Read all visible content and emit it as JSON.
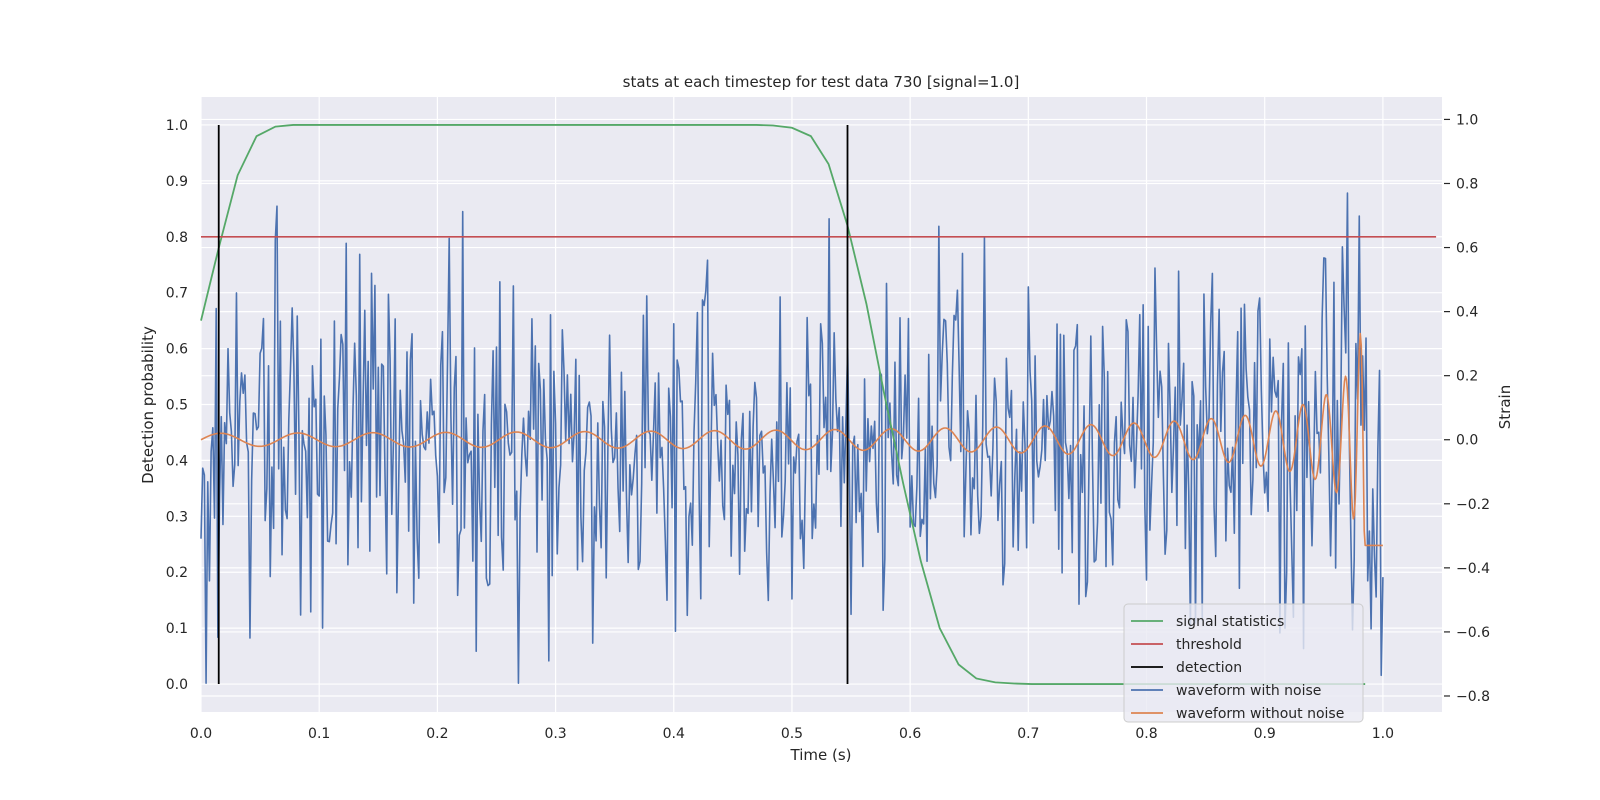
{
  "chart_data": {
    "type": "line",
    "title": "stats at each timestep for test data 730 [signal=1.0]",
    "xlabel": "Time (s)",
    "ylabel_left": "Detection probability",
    "ylabel_right": "Strain",
    "xlim": [
      0.0,
      1.05
    ],
    "ylim_left": [
      -0.05,
      1.05
    ],
    "ylim_right": [
      -0.85,
      1.07
    ],
    "x_ticks": [
      0.0,
      0.1,
      0.2,
      0.3,
      0.4,
      0.5,
      0.6,
      0.7,
      0.8,
      0.9,
      1.0
    ],
    "x_tick_labels": [
      "0.0",
      "0.1",
      "0.2",
      "0.3",
      "0.4",
      "0.5",
      "0.6",
      "0.7",
      "0.8",
      "0.9",
      "1.0"
    ],
    "y_left_ticks": [
      0.0,
      0.1,
      0.2,
      0.3,
      0.4,
      0.5,
      0.6,
      0.7,
      0.8,
      0.9,
      1.0
    ],
    "y_left_tick_labels": [
      "0.0",
      "0.1",
      "0.2",
      "0.3",
      "0.4",
      "0.5",
      "0.6",
      "0.7",
      "0.8",
      "0.9",
      "1.0"
    ],
    "y_right_ticks": [
      -0.8,
      -0.6,
      -0.4,
      -0.2,
      0.0,
      0.2,
      0.4,
      0.6,
      0.8,
      1.0
    ],
    "y_right_tick_labels": [
      "−0.8",
      "−0.6",
      "−0.4",
      "−0.2",
      "0.0",
      "0.2",
      "0.4",
      "0.6",
      "0.8",
      "1.0"
    ],
    "grid": true,
    "legend_position": "bottom-right",
    "threshold": 0.8,
    "detections": [
      0.015,
      0.547
    ],
    "signal_statistics": {
      "name": "signal statistics",
      "color": "#55a868",
      "x": [
        0.0,
        0.015,
        0.031,
        0.047,
        0.063,
        0.078,
        0.094,
        0.11,
        0.2,
        0.3,
        0.4,
        0.47,
        0.484,
        0.5,
        0.516,
        0.531,
        0.547,
        0.563,
        0.578,
        0.594,
        0.609,
        0.625,
        0.641,
        0.656,
        0.672,
        0.688,
        0.703,
        0.75,
        0.8,
        0.85,
        0.9,
        0.95,
        0.985
      ],
      "y": [
        0.65,
        0.78,
        0.91,
        0.98,
        0.997,
        1.0,
        1.0,
        1.0,
        1.0,
        1.0,
        1.0,
        1.0,
        0.999,
        0.995,
        0.98,
        0.93,
        0.82,
        0.68,
        0.52,
        0.36,
        0.22,
        0.1,
        0.035,
        0.01,
        0.003,
        0.001,
        0.0,
        0.0,
        0.0,
        0.0,
        0.0,
        0.0,
        0.0
      ]
    },
    "series": [
      {
        "name": "threshold",
        "color": "#c44e52"
      },
      {
        "name": "detection",
        "color": "#000000"
      },
      {
        "name": "waveform with noise",
        "color": "#4c72b0",
        "x_range": [
          0.0,
          1.0
        ],
        "strain_range": [
          -0.76,
          1.0
        ]
      },
      {
        "name": "waveform without noise",
        "color": "#dd8452",
        "x_range": [
          0.0,
          1.0
        ],
        "strain_range": [
          -0.3,
          0.4
        ]
      }
    ]
  }
}
